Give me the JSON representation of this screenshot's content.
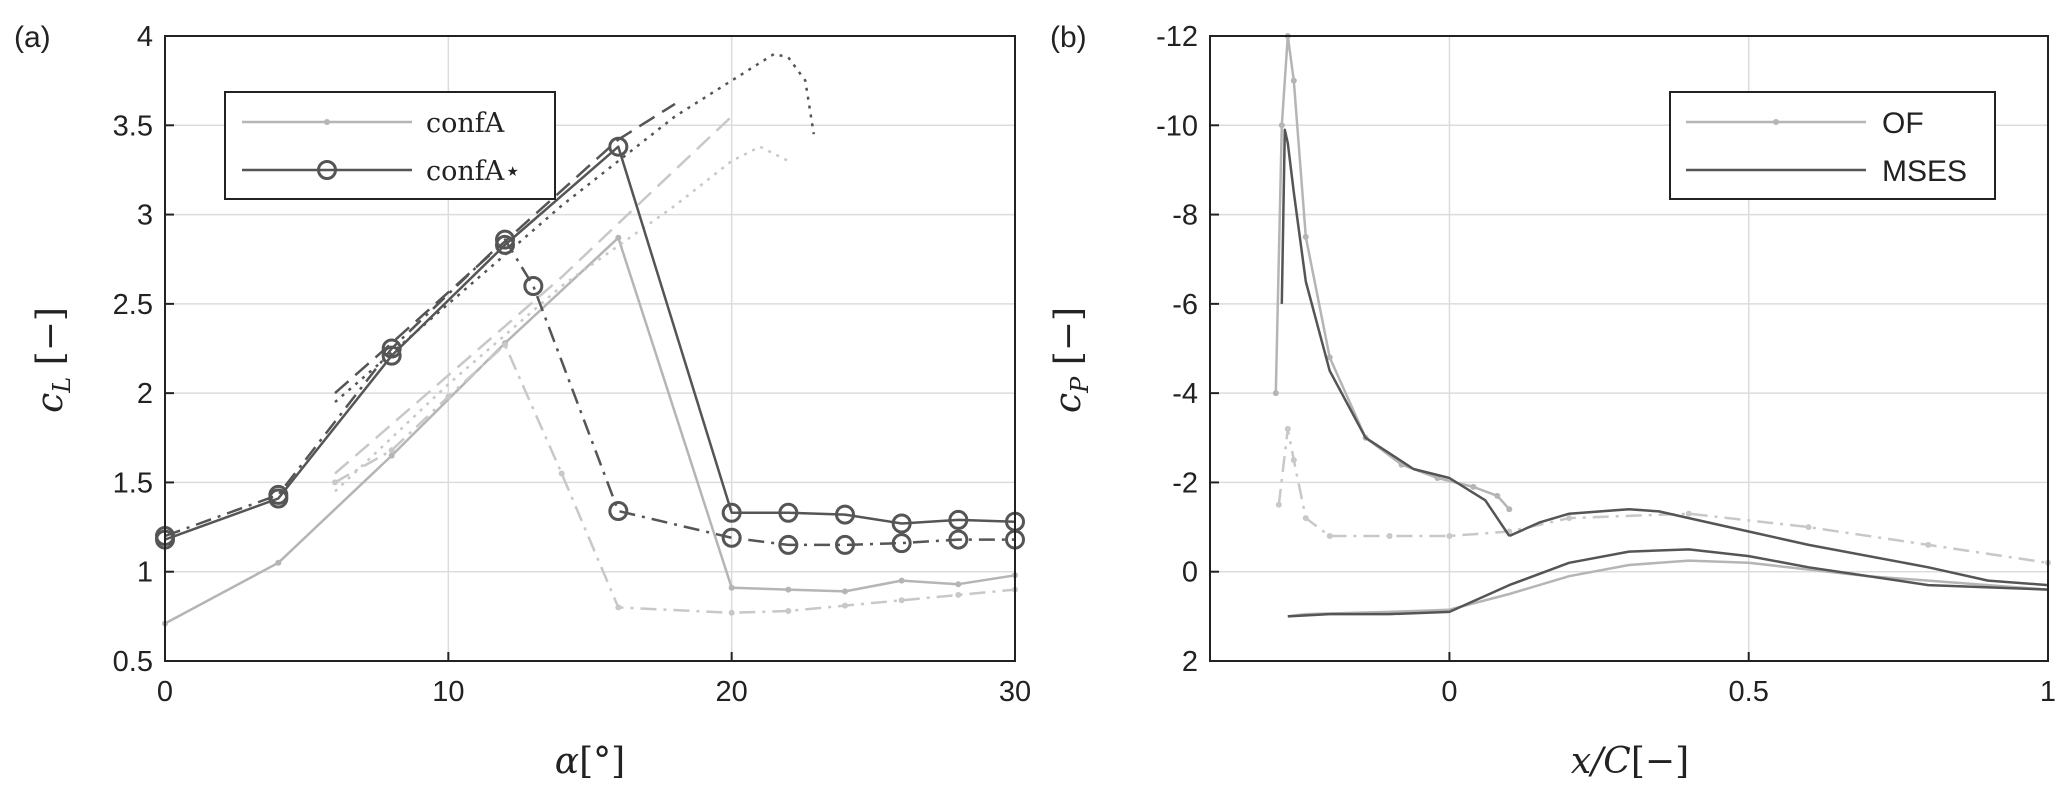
{
  "figure": {
    "panel_a_label": "(a)",
    "panel_b_label": "(b)"
  },
  "chart_data": [
    {
      "type": "line",
      "panel": "(a)",
      "xlabel": "α[°]",
      "ylabel": "c_L [−]",
      "xlim": [
        0,
        30
      ],
      "ylim": [
        0.5,
        4
      ],
      "xticks": [
        "0",
        "10",
        "20",
        "30"
      ],
      "yticks": [
        "0.5",
        "1",
        "1.5",
        "2",
        "2.5",
        "3",
        "3.5",
        "4"
      ],
      "grid": true,
      "legend": {
        "placement": "top-left",
        "entries": [
          "confA",
          "confA⋆"
        ]
      },
      "series": [
        {
          "name": "confA",
          "color": "#b5b5b5",
          "dash": "solid",
          "marker": "dot",
          "x": [
            0,
            4,
            8,
            12,
            16,
            20,
            22,
            24,
            26,
            28,
            30
          ],
          "y": [
            0.71,
            1.05,
            1.65,
            2.28,
            2.87,
            0.91,
            0.9,
            0.89,
            0.95,
            0.93,
            0.98
          ]
        },
        {
          "color": "#c8c8c8",
          "dash": "dashdot",
          "marker": "dot",
          "x": [
            6,
            8,
            10,
            12,
            14,
            16,
            20,
            22,
            24,
            26,
            28,
            30
          ],
          "y": [
            1.5,
            1.68,
            1.98,
            2.27,
            1.55,
            0.8,
            0.77,
            0.78,
            0.81,
            0.84,
            0.87,
            0.9
          ]
        },
        {
          "color": "#c8c8c8",
          "dash": "dashed",
          "x": [
            6,
            10,
            14,
            18,
            20
          ],
          "y": [
            1.55,
            2.1,
            2.65,
            3.25,
            3.55
          ]
        },
        {
          "color": "#c8c8c8",
          "dash": "dotted",
          "x": [
            6,
            10,
            14,
            18,
            20,
            21,
            22
          ],
          "y": [
            1.45,
            2.05,
            2.6,
            3.05,
            3.3,
            3.38,
            3.3
          ]
        },
        {
          "name": "confA⋆",
          "color": "#555555",
          "dash": "solid",
          "marker": "circle",
          "x": [
            0,
            4,
            8,
            12,
            16,
            20,
            22,
            24,
            26,
            28,
            30
          ],
          "y": [
            1.18,
            1.41,
            2.21,
            2.83,
            3.38,
            1.33,
            1.33,
            1.32,
            1.27,
            1.29,
            1.28
          ]
        },
        {
          "color": "#555555",
          "dash": "dashdot",
          "marker": "circle",
          "x": [
            0,
            4,
            8,
            12,
            13,
            16,
            20,
            22,
            24,
            26,
            28,
            30
          ],
          "y": [
            1.2,
            1.43,
            2.25,
            2.86,
            2.6,
            1.34,
            1.19,
            1.15,
            1.15,
            1.16,
            1.18,
            1.18
          ]
        },
        {
          "color": "#555555",
          "dash": "dashed",
          "x": [
            6,
            8,
            12,
            16,
            18
          ],
          "y": [
            2.0,
            2.28,
            2.85,
            3.42,
            3.62
          ]
        },
        {
          "color": "#555555",
          "dash": "dotted",
          "x": [
            6,
            10,
            14,
            18,
            20,
            21,
            21.5,
            22,
            22.6,
            22.9
          ],
          "y": [
            1.95,
            2.5,
            3.05,
            3.55,
            3.75,
            3.85,
            3.9,
            3.88,
            3.75,
            3.45
          ]
        }
      ]
    },
    {
      "type": "line",
      "panel": "(b)",
      "xlabel": "x/C[−]",
      "ylabel": "c_P [−]",
      "xlim": [
        -0.4,
        1
      ],
      "ylim": [
        2,
        -12
      ],
      "xticks": [
        "0",
        "0.5",
        "1"
      ],
      "yticks": [
        "-12",
        "-10",
        "-8",
        "-6",
        "-4",
        "-2",
        "0",
        "2"
      ],
      "grid": true,
      "legend": {
        "placement": "top-right",
        "entries": [
          "OF",
          "MSES"
        ]
      },
      "series": [
        {
          "name": "OF",
          "color": "#b5b5b5",
          "dash": "solid",
          "marker": "dot",
          "x": [
            -0.29,
            -0.28,
            -0.27,
            -0.26,
            -0.24,
            -0.2,
            -0.14,
            -0.08,
            -0.02,
            0.04,
            0.08,
            0.1
          ],
          "y": [
            -4,
            -10,
            -12,
            -11,
            -7.5,
            -4.8,
            -3,
            -2.4,
            -2.1,
            -1.9,
            -1.7,
            -1.4
          ]
        },
        {
          "color": "#c8c8c8",
          "dash": "dashdot",
          "marker": "dot",
          "x": [
            -0.285,
            -0.27,
            -0.26,
            -0.24,
            -0.2,
            -0.1,
            0,
            0.1,
            0.2,
            0.4,
            0.6,
            0.8,
            1.0
          ],
          "y": [
            -1.5,
            -3.2,
            -2.5,
            -1.2,
            -0.8,
            -0.8,
            -0.8,
            -0.9,
            -1.2,
            -1.3,
            -1.0,
            -0.6,
            -0.2
          ]
        },
        {
          "color": "#b5b5b5",
          "dash": "solid",
          "x": [
            -0.27,
            -0.24,
            -0.1,
            0,
            0.1,
            0.2,
            0.3,
            0.4,
            0.5,
            0.7,
            0.9,
            1.0
          ],
          "y": [
            1.0,
            0.95,
            0.9,
            0.85,
            0.5,
            0.1,
            -0.15,
            -0.25,
            -0.2,
            0.1,
            0.3,
            0.4
          ]
        },
        {
          "name": "MSES",
          "color": "#555555",
          "dash": "solid",
          "x": [
            -0.28,
            -0.275,
            -0.27,
            -0.26,
            -0.24,
            -0.2,
            -0.14,
            -0.06,
            0,
            0.06,
            0.09,
            0.1
          ],
          "y": [
            -6,
            -9.9,
            -9.6,
            -8.5,
            -6.5,
            -4.5,
            -3,
            -2.3,
            -2.1,
            -1.6,
            -1,
            -0.8
          ]
        },
        {
          "color": "#555555",
          "dash": "solid",
          "x": [
            0.1,
            0.15,
            0.2,
            0.3,
            0.35,
            0.4,
            0.5,
            0.6,
            0.8,
            0.9,
            1.0
          ],
          "y": [
            -0.8,
            -1.1,
            -1.3,
            -1.4,
            -1.35,
            -1.2,
            -0.9,
            -0.6,
            -0.1,
            0.2,
            0.3
          ]
        },
        {
          "color": "#555555",
          "dash": "solid",
          "x": [
            -0.27,
            -0.2,
            -0.1,
            0,
            0.05,
            0.1,
            0.2,
            0.3,
            0.4,
            0.5,
            0.6,
            0.8,
            1.0
          ],
          "y": [
            1.0,
            0.95,
            0.95,
            0.9,
            0.6,
            0.3,
            -0.2,
            -0.45,
            -0.5,
            -0.35,
            -0.1,
            0.3,
            0.4
          ]
        }
      ]
    }
  ]
}
